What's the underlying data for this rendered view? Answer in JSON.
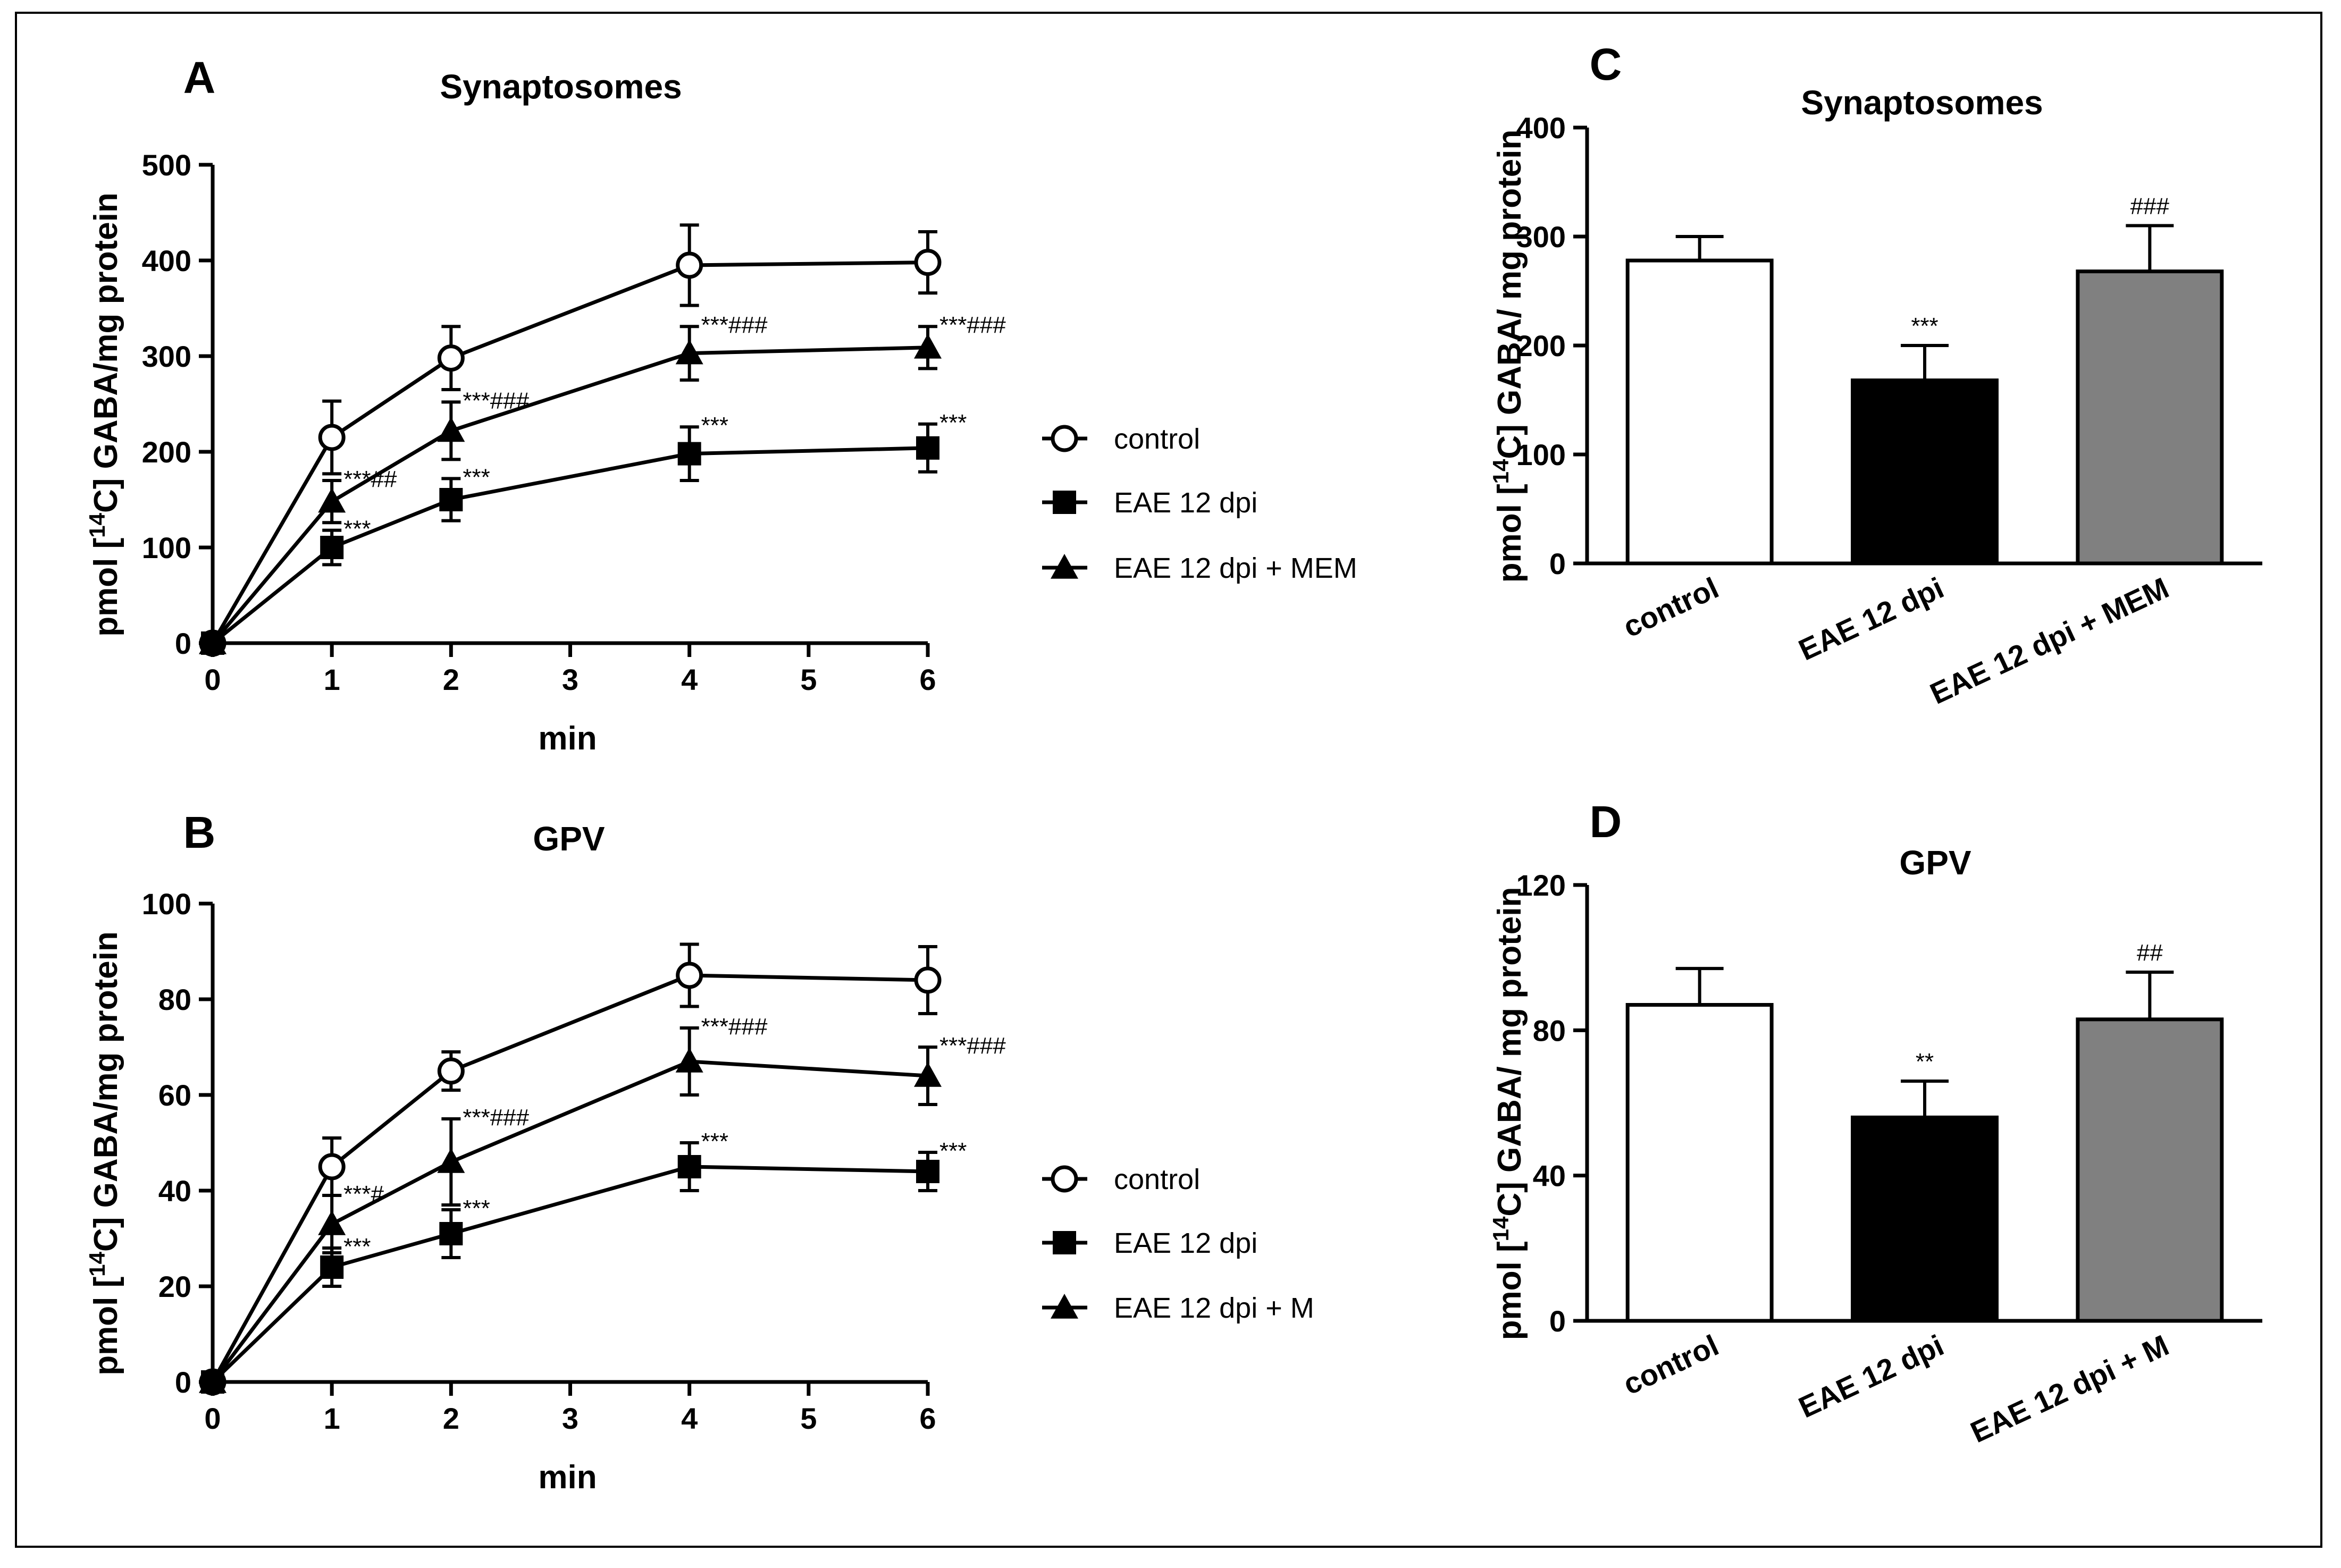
{
  "chart_data": [
    {
      "panel": "A",
      "type": "line",
      "title": "Synaptosomes",
      "xlabel": "min",
      "ylabel": "pmol [14C] GABA/mg protein",
      "x": [
        0,
        1,
        2,
        4,
        6
      ],
      "xticks": [
        "0",
        "1",
        "2",
        "3",
        "4",
        "5",
        "6"
      ],
      "xlim": [
        0,
        6
      ],
      "ylim": [
        0,
        500
      ],
      "yticks": [
        "0",
        "100",
        "200",
        "300",
        "400",
        "500"
      ],
      "series": [
        {
          "name": "control",
          "marker": "open-circle",
          "values": [
            0,
            215,
            298,
            395,
            398
          ],
          "errors": [
            0,
            38,
            33,
            42,
            32
          ],
          "annotations": [
            "",
            "",
            "",
            "",
            ""
          ]
        },
        {
          "name": "EAE 12 dpi",
          "marker": "square",
          "values": [
            0,
            100,
            150,
            198,
            204
          ],
          "errors": [
            0,
            18,
            22,
            28,
            25
          ],
          "annotations": [
            "",
            "***",
            "***",
            "***",
            "***"
          ]
        },
        {
          "name": "EAE 12 dpi + MEM",
          "marker": "triangle",
          "values": [
            0,
            148,
            222,
            303,
            309
          ],
          "errors": [
            0,
            22,
            30,
            28,
            22
          ],
          "annotations": [
            "",
            "***##",
            "***###",
            "***###",
            "***###"
          ]
        }
      ],
      "legend_position": "right"
    },
    {
      "panel": "B",
      "type": "line",
      "title": "GPV",
      "xlabel": "min",
      "ylabel": "pmol [14C] GABA/mg protein",
      "x": [
        0,
        1,
        2,
        4,
        6
      ],
      "xticks": [
        "0",
        "1",
        "2",
        "3",
        "4",
        "5",
        "6"
      ],
      "xlim": [
        0,
        6
      ],
      "ylim": [
        0,
        100
      ],
      "yticks": [
        "0",
        "20",
        "40",
        "60",
        "80",
        "100"
      ],
      "series": [
        {
          "name": "control",
          "marker": "open-circle",
          "values": [
            0,
            45,
            65,
            85,
            84
          ],
          "errors": [
            0,
            6,
            4,
            6.5,
            7
          ],
          "annotations": [
            "",
            "",
            "",
            "",
            ""
          ]
        },
        {
          "name": "EAE 12 dpi",
          "marker": "square",
          "values": [
            0,
            24,
            31,
            45,
            44
          ],
          "errors": [
            0,
            4,
            5,
            5,
            4
          ],
          "annotations": [
            "",
            "***",
            "***",
            "***",
            "***"
          ]
        },
        {
          "name": "EAE 12 dpi + M",
          "marker": "triangle",
          "values": [
            0,
            33,
            46,
            67,
            64
          ],
          "errors": [
            0,
            6,
            9,
            7,
            6
          ],
          "annotations": [
            "",
            "***#",
            "***###",
            "***###",
            "***###"
          ]
        }
      ],
      "legend_position": "right"
    },
    {
      "panel": "C",
      "type": "bar",
      "title": "Synaptosomes",
      "ylabel": "pmol [14C] GABA/ mg protein",
      "categories": [
        "control",
        "EAE 12 dpi",
        "EAE 12 dpi + MEM"
      ],
      "values": [
        278,
        168,
        268
      ],
      "errors": [
        22,
        32,
        42
      ],
      "annotations": [
        "",
        "***",
        "###"
      ],
      "colors": [
        "#ffffff",
        "#000000",
        "#808080"
      ],
      "ylim": [
        0,
        400
      ],
      "yticks": [
        "0",
        "100",
        "200",
        "300",
        "400"
      ]
    },
    {
      "panel": "D",
      "type": "bar",
      "title": "GPV",
      "ylabel": "pmol [14C] GABA/ mg protein",
      "categories": [
        "control",
        "EAE 12 dpi",
        "EAE 12 dpi + M"
      ],
      "values": [
        87,
        56,
        83
      ],
      "errors": [
        10,
        10,
        13
      ],
      "annotations": [
        "",
        "**",
        "##"
      ],
      "colors": [
        "#ffffff",
        "#000000",
        "#808080"
      ],
      "ylim": [
        0,
        120
      ],
      "yticks": [
        "0",
        "40",
        "80",
        "120"
      ]
    }
  ]
}
